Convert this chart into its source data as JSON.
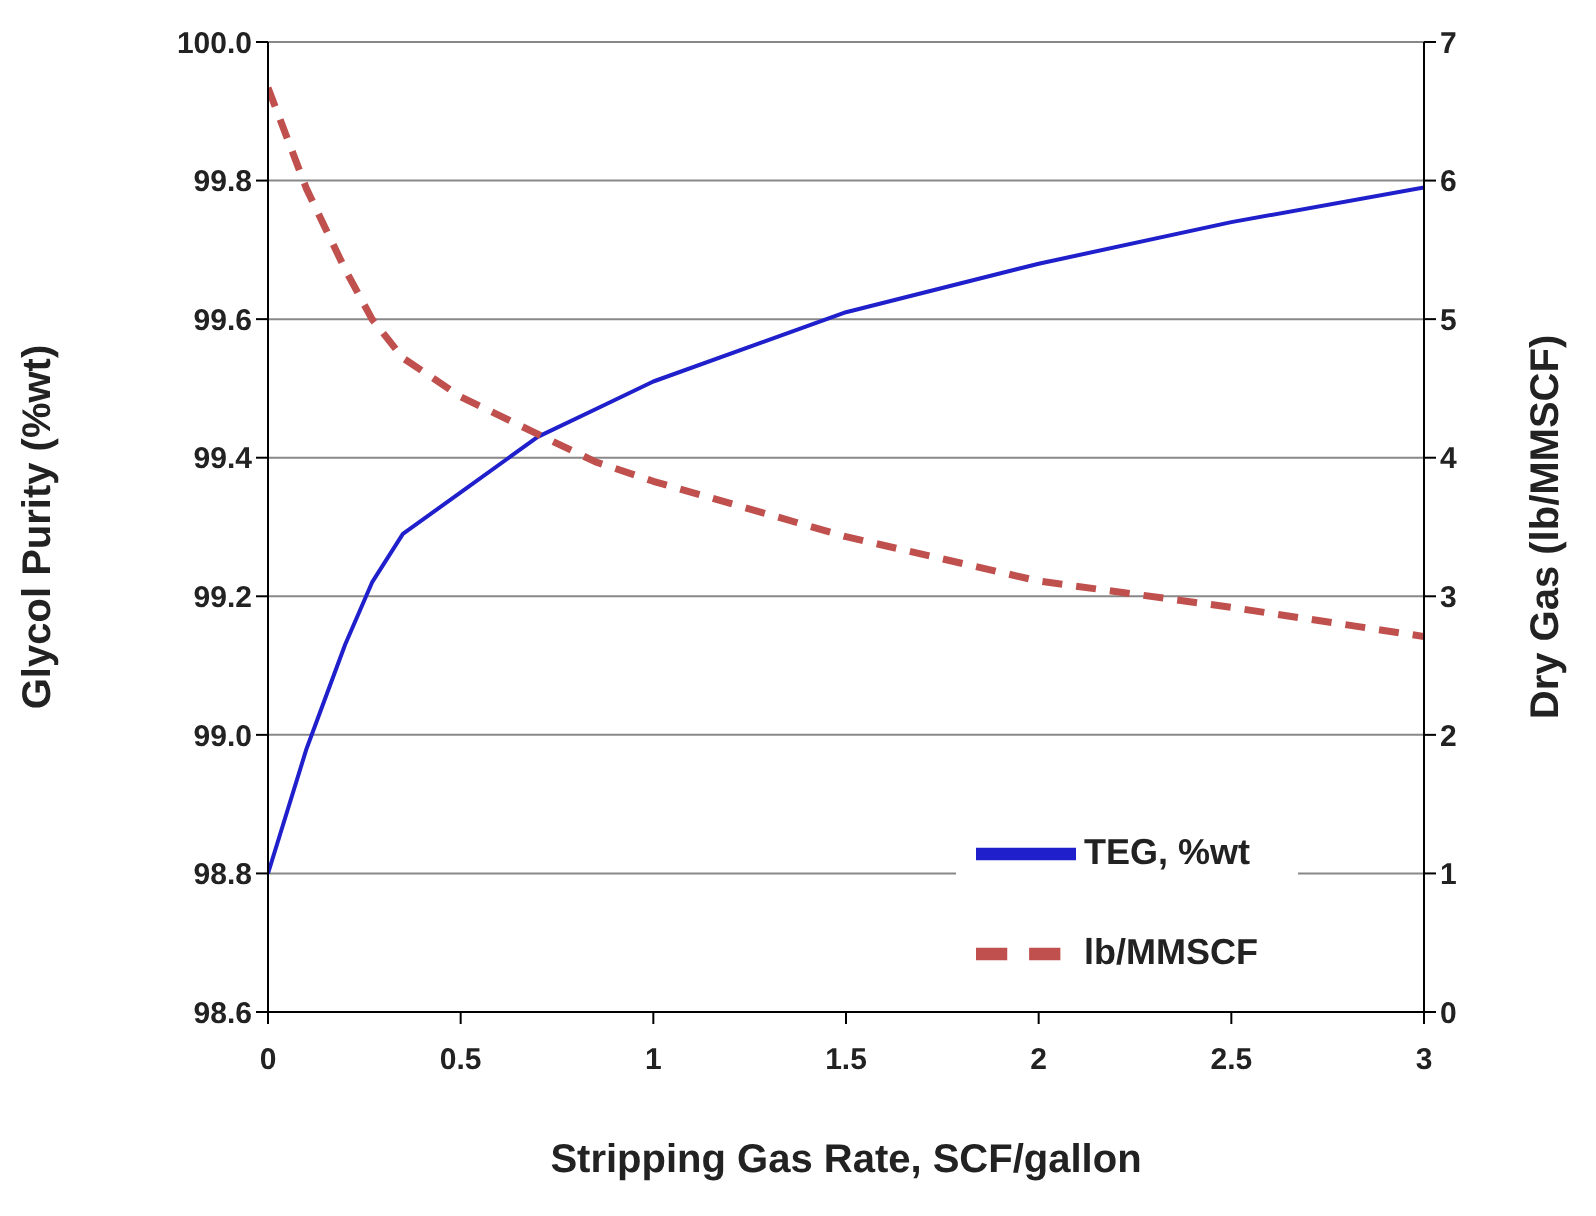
{
  "chart_data": {
    "type": "line",
    "xlabel": "Stripping Gas Rate, SCF/gallon",
    "ylabel": "Glycol Purity  (%wt)",
    "y2label": "Dry Gas   (lb/MMSCF)",
    "x": [
      0,
      0.1,
      0.2,
      0.27,
      0.35,
      0.5,
      0.7,
      0.85,
      1,
      1.5,
      2,
      2.5,
      3
    ],
    "series": [
      {
        "name": "TEG, %wt",
        "color": "#1f1fcc",
        "line_style": "solid",
        "values": [
          98.8,
          98.98,
          99.13,
          99.22,
          99.29,
          99.35,
          99.43,
          99.47,
          99.51,
          99.61,
          99.68,
          99.74,
          99.79
        ]
      },
      {
        "name": "lb/MMSCF",
        "color": "#c0504d",
        "line_style": "dashed",
        "axis": "y2",
        "values": [
          6.67,
          5.94,
          5.36,
          5.0,
          4.72,
          4.44,
          4.17,
          3.97,
          3.83,
          3.43,
          3.11,
          2.92,
          2.71
        ]
      }
    ],
    "xlim": [
      0,
      3
    ],
    "xticks": [
      0,
      0.5,
      1,
      1.5,
      2,
      2.5,
      3
    ],
    "ylim": [
      98.6,
      100
    ],
    "yticks": [
      {
        "value": 98.6,
        "label": "98.6"
      },
      {
        "value": 98.8,
        "label": "98.8"
      },
      {
        "value": 99,
        "label": "99.0"
      },
      {
        "value": 99.2,
        "label": "99.2"
      },
      {
        "value": 99.4,
        "label": "99.4"
      },
      {
        "value": 99.6,
        "label": "99.6"
      },
      {
        "value": 99.8,
        "label": "99.8"
      },
      {
        "value": 100,
        "label": "100.0"
      }
    ],
    "y2lim": [
      0,
      7
    ],
    "y2ticks": [
      0,
      1,
      2,
      3,
      4,
      5,
      6,
      7
    ],
    "grid": "y",
    "legend": "bottom right",
    "marker": "none"
  }
}
